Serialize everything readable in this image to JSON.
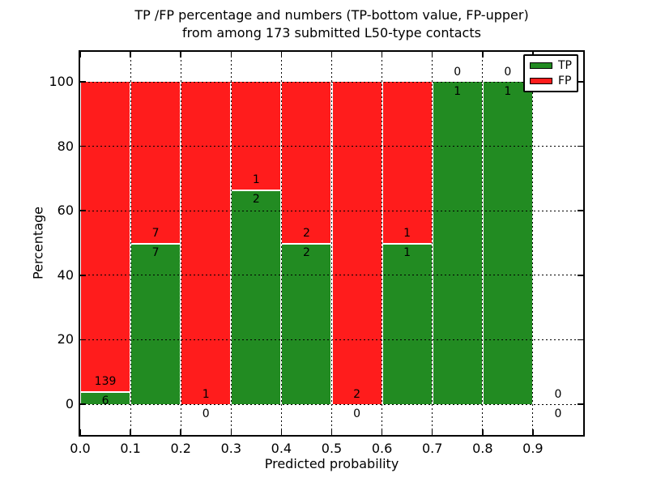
{
  "figure": {
    "title_line1": "TP /FP percentage and numbers (TP-bottom value, FP-upper)",
    "title_line2": "from among 173 submitted L50-type contacts"
  },
  "chart_data": {
    "type": "bar",
    "stacked": true,
    "orientation": "vertical",
    "title": "TP /FP percentage and numbers (TP-bottom value, FP-upper) from among 173 submitted L50-type contacts",
    "xlabel": "Predicted probability",
    "ylabel": "Percentage",
    "x_ticks": [
      "0.0",
      "0.1",
      "0.2",
      "0.3",
      "0.4",
      "0.5",
      "0.6",
      "0.7",
      "0.8",
      "0.9"
    ],
    "y_ticks": [
      0,
      20,
      40,
      60,
      80,
      100
    ],
    "xlim": [
      0.0,
      1.0
    ],
    "ylim": [
      -10,
      110
    ],
    "grid": "dotted",
    "total_contacts": 173,
    "bins": [
      {
        "range": [
          0.0,
          0.1
        ],
        "tp": 6,
        "fp": 139,
        "tp_pct": 4.14,
        "fp_pct": 95.86
      },
      {
        "range": [
          0.1,
          0.2
        ],
        "tp": 7,
        "fp": 7,
        "tp_pct": 50,
        "fp_pct": 50
      },
      {
        "range": [
          0.2,
          0.3
        ],
        "tp": 0,
        "fp": 1,
        "tp_pct": 0,
        "fp_pct": 100
      },
      {
        "range": [
          0.3,
          0.4
        ],
        "tp": 2,
        "fp": 1,
        "tp_pct": 66.67,
        "fp_pct": 33.33
      },
      {
        "range": [
          0.4,
          0.5
        ],
        "tp": 2,
        "fp": 2,
        "tp_pct": 50,
        "fp_pct": 50
      },
      {
        "range": [
          0.5,
          0.6
        ],
        "tp": 0,
        "fp": 2,
        "tp_pct": 0,
        "fp_pct": 100
      },
      {
        "range": [
          0.6,
          0.7
        ],
        "tp": 1,
        "fp": 1,
        "tp_pct": 50,
        "fp_pct": 50
      },
      {
        "range": [
          0.7,
          0.8
        ],
        "tp": 1,
        "fp": 0,
        "tp_pct": 100,
        "fp_pct": 0
      },
      {
        "range": [
          0.8,
          0.9
        ],
        "tp": 1,
        "fp": 0,
        "tp_pct": 100,
        "fp_pct": 0
      },
      {
        "range": [
          0.9,
          1.0
        ],
        "tp": 0,
        "fp": 0,
        "tp_pct": 0,
        "fp_pct": 0
      }
    ],
    "legend": {
      "position": "upper right",
      "entries": [
        {
          "label": "TP",
          "color": "#228b22"
        },
        {
          "label": "FP",
          "color": "#ff1c1c"
        }
      ]
    }
  }
}
